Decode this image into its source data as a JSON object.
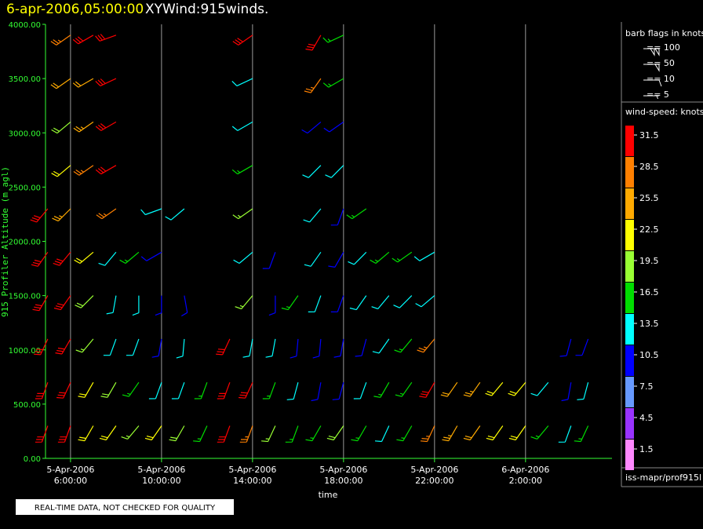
{
  "chart_data": {
    "type": "barb",
    "title": "6-apr-2006,05:00:00",
    "subtitle": "XYWind:915winds.",
    "xlabel": "time",
    "ylabel": "915 Profiler Altitude (m agl)",
    "xlim": [
      "2006-04-05T04:54",
      "2006-04-06T05:48"
    ],
    "xticks": [
      {
        "value": "2006-04-05T06:00",
        "label": [
          "5-Apr-2006",
          "6:00:00"
        ]
      },
      {
        "value": "2006-04-05T10:00",
        "label": [
          "5-Apr-2006",
          "10:00:00"
        ]
      },
      {
        "value": "2006-04-05T14:00",
        "label": [
          "5-Apr-2006",
          "14:00:00"
        ]
      },
      {
        "value": "2006-04-05T18:00",
        "label": [
          "5-Apr-2006",
          "18:00:00"
        ]
      },
      {
        "value": "2006-04-05T22:00",
        "label": [
          "5-Apr-2006",
          "22:00:00"
        ]
      },
      {
        "value": "2006-04-06T02:00",
        "label": [
          "6-Apr-2006",
          "2:00:00"
        ]
      }
    ],
    "ylim": [
      0,
      4000
    ],
    "yticks": [
      {
        "value": 0,
        "label": "0.00"
      },
      {
        "value": 500,
        "label": "500.00"
      },
      {
        "value": 1000,
        "label": "1000.00"
      },
      {
        "value": 1500,
        "label": "1500.00"
      },
      {
        "value": 2000,
        "label": "2000.00"
      },
      {
        "value": 2500,
        "label": "2500.00"
      },
      {
        "value": 3000,
        "label": "3000.00"
      },
      {
        "value": 3500,
        "label": "3500.00"
      },
      {
        "value": 4000,
        "label": "4000.00"
      }
    ],
    "grid": true,
    "altitudes": [
      300,
      700,
      1100,
      1500,
      1900,
      2300,
      2700,
      3100,
      3500,
      3900
    ],
    "profiles": [
      {
        "x": "2006-04-05T05:00",
        "speeds": [
          32,
          32,
          32,
          32,
          32,
          32,
          null,
          null,
          null,
          null
        ],
        "directions": [
          200,
          200,
          205,
          210,
          215,
          220,
          null,
          null,
          null,
          null
        ]
      },
      {
        "x": "2006-04-05T06:00",
        "speeds": [
          32,
          32,
          32,
          32,
          30,
          26,
          22,
          20,
          24,
          28
        ],
        "directions": [
          200,
          205,
          210,
          215,
          220,
          225,
          230,
          230,
          235,
          235
        ]
      },
      {
        "x": "2006-04-05T07:00",
        "speeds": [
          22,
          22,
          18,
          20,
          22,
          null,
          27,
          26,
          24,
          32
        ],
        "directions": [
          210,
          210,
          220,
          225,
          230,
          null,
          235,
          235,
          240,
          240
        ]
      },
      {
        "x": "2006-04-05T08:00",
        "speeds": [
          22,
          20,
          14,
          12,
          14,
          27,
          30,
          32,
          32,
          32
        ],
        "directions": [
          215,
          210,
          200,
          190,
          220,
          235,
          240,
          240,
          245,
          250
        ]
      },
      {
        "x": "2006-04-05T09:00",
        "speeds": [
          18,
          15,
          12,
          12,
          15,
          null,
          null,
          null,
          null,
          null
        ],
        "directions": [
          220,
          215,
          200,
          180,
          230,
          null,
          null,
          null,
          null,
          null
        ]
      },
      {
        "x": "2006-04-05T10:00",
        "speeds": [
          22,
          12,
          10,
          10,
          10,
          13,
          null,
          null,
          null,
          null
        ],
        "directions": [
          215,
          200,
          190,
          180,
          240,
          250,
          null,
          null,
          null,
          null
        ]
      },
      {
        "x": "2006-04-05T11:00",
        "speeds": [
          20,
          14,
          12,
          10,
          null,
          12,
          null,
          null,
          null,
          null
        ],
        "directions": [
          210,
          200,
          185,
          170,
          null,
          230,
          null,
          null,
          null,
          null
        ]
      },
      {
        "x": "2006-04-05T12:00",
        "speeds": [
          17,
          17,
          null,
          null,
          null,
          null,
          null,
          null,
          null,
          null
        ],
        "directions": [
          205,
          200,
          null,
          null,
          null,
          null,
          null,
          null,
          null,
          null
        ]
      },
      {
        "x": "2006-04-05T13:00",
        "speeds": [
          32,
          32,
          32,
          null,
          null,
          null,
          null,
          null,
          null,
          null
        ],
        "directions": [
          200,
          200,
          205,
          null,
          null,
          null,
          null,
          null,
          null,
          null
        ]
      },
      {
        "x": "2006-04-05T14:00",
        "speeds": [
          28,
          30,
          12,
          18,
          12,
          18,
          16,
          14,
          13,
          32
        ],
        "directions": [
          200,
          205,
          190,
          220,
          230,
          235,
          240,
          240,
          245,
          235
        ]
      },
      {
        "x": "2006-04-05T15:00",
        "speeds": [
          19,
          17,
          13,
          11,
          10,
          null,
          null,
          null,
          null,
          null
        ],
        "directions": [
          205,
          200,
          190,
          180,
          200,
          null,
          null,
          null,
          null,
          null
        ]
      },
      {
        "x": "2006-04-05T16:00",
        "speeds": [
          15,
          14,
          10,
          16,
          null,
          null,
          null,
          null,
          null,
          null
        ],
        "directions": [
          200,
          195,
          185,
          215,
          null,
          null,
          null,
          null,
          null,
          null
        ]
      },
      {
        "x": "2006-04-05T17:00",
        "speeds": [
          15,
          10,
          11,
          14,
          13,
          14,
          13,
          10,
          28,
          30
        ],
        "directions": [
          210,
          190,
          185,
          200,
          215,
          220,
          225,
          230,
          215,
          210
        ]
      },
      {
        "x": "2006-04-05T18:00",
        "speeds": [
          20,
          10,
          10,
          11,
          11,
          10,
          13,
          10,
          15,
          17
        ],
        "directions": [
          215,
          195,
          190,
          200,
          210,
          200,
          225,
          235,
          240,
          245
        ]
      },
      {
        "x": "2006-04-05T19:00",
        "speeds": [
          15,
          13,
          10,
          12,
          12,
          15,
          null,
          null,
          null,
          null
        ],
        "directions": [
          210,
          200,
          195,
          215,
          225,
          235,
          null,
          null,
          null,
          null
        ]
      },
      {
        "x": "2006-04-05T20:00",
        "speeds": [
          13,
          16,
          14,
          13,
          17,
          null,
          null,
          null,
          null,
          null
        ],
        "directions": [
          205,
          210,
          215,
          220,
          230,
          null,
          null,
          null,
          null,
          null
        ]
      },
      {
        "x": "2006-04-05T21:00",
        "speeds": [
          17,
          16,
          15,
          12,
          17,
          null,
          null,
          null,
          null,
          null
        ],
        "directions": [
          210,
          215,
          220,
          225,
          235,
          null,
          null,
          null,
          null,
          null
        ]
      },
      {
        "x": "2006-04-05T22:00",
        "speeds": [
          28,
          31,
          27,
          14,
          14,
          null,
          null,
          null,
          null,
          null
        ],
        "directions": [
          205,
          210,
          220,
          230,
          240,
          null,
          null,
          null,
          null,
          null
        ]
      },
      {
        "x": "2006-04-05T23:00",
        "speeds": [
          25,
          24,
          null,
          null,
          null,
          null,
          null,
          null,
          null,
          null
        ],
        "directions": [
          210,
          215,
          null,
          null,
          null,
          null,
          null,
          null,
          null,
          null
        ]
      },
      {
        "x": "2006-04-06T00:00",
        "speeds": [
          24,
          26,
          null,
          null,
          null,
          null,
          null,
          null,
          null,
          null
        ],
        "directions": [
          215,
          215,
          null,
          null,
          null,
          null,
          null,
          null,
          null,
          null
        ]
      },
      {
        "x": "2006-04-06T01:00",
        "speeds": [
          22,
          22,
          null,
          null,
          null,
          null,
          null,
          null,
          null,
          null
        ],
        "directions": [
          215,
          220,
          null,
          null,
          null,
          null,
          null,
          null,
          null,
          null
        ]
      },
      {
        "x": "2006-04-06T02:00",
        "speeds": [
          21,
          22,
          null,
          null,
          null,
          null,
          null,
          null,
          null,
          null
        ],
        "directions": [
          215,
          220,
          null,
          null,
          null,
          null,
          null,
          null,
          null,
          null
        ]
      },
      {
        "x": "2006-04-06T03:00",
        "speeds": [
          17,
          14,
          null,
          null,
          null,
          null,
          null,
          null,
          null,
          null
        ],
        "directions": [
          220,
          220,
          null,
          null,
          null,
          null,
          null,
          null,
          null,
          null
        ]
      },
      {
        "x": "2006-04-06T04:00",
        "speeds": [
          12,
          10,
          10,
          null,
          null,
          null,
          null,
          null,
          null,
          null
        ],
        "directions": [
          200,
          190,
          195,
          null,
          null,
          null,
          null,
          null,
          null,
          null
        ]
      },
      {
        "x": "2006-04-06T04:45",
        "speeds": [
          15,
          12,
          10,
          null,
          null,
          null,
          null,
          null,
          null,
          null
        ],
        "directions": [
          205,
          195,
          200,
          null,
          null,
          null,
          null,
          null,
          null,
          null
        ]
      }
    ],
    "barb_legend": {
      "title": "barb flags in knots",
      "items": [
        {
          "value": 100,
          "label": "== 100"
        },
        {
          "value": 50,
          "label": "== 50"
        },
        {
          "value": 10,
          "label": "== 10"
        },
        {
          "value": 5,
          "label": "== 5"
        }
      ]
    },
    "colorbar": {
      "title": "wind-speed: knots",
      "items": [
        {
          "value": 31.5,
          "color": "#ff0000"
        },
        {
          "value": 28.5,
          "color": "#ff8000"
        },
        {
          "value": 25.5,
          "color": "#ffaa00"
        },
        {
          "value": 22.5,
          "color": "#ffff00"
        },
        {
          "value": 19.5,
          "color": "#99ff33"
        },
        {
          "value": 16.5,
          "color": "#00dd00"
        },
        {
          "value": 13.5,
          "color": "#00ffff"
        },
        {
          "value": 10.5,
          "color": "#0000ff"
        },
        {
          "value": 7.5,
          "color": "#6699ff"
        },
        {
          "value": 4.5,
          "color": "#9933ff"
        },
        {
          "value": 1.5,
          "color": "#ff88ff"
        }
      ]
    },
    "source": "iss-mapr/prof915l",
    "note": "REAL-TIME DATA, NOT CHECKED FOR QUALITY"
  }
}
